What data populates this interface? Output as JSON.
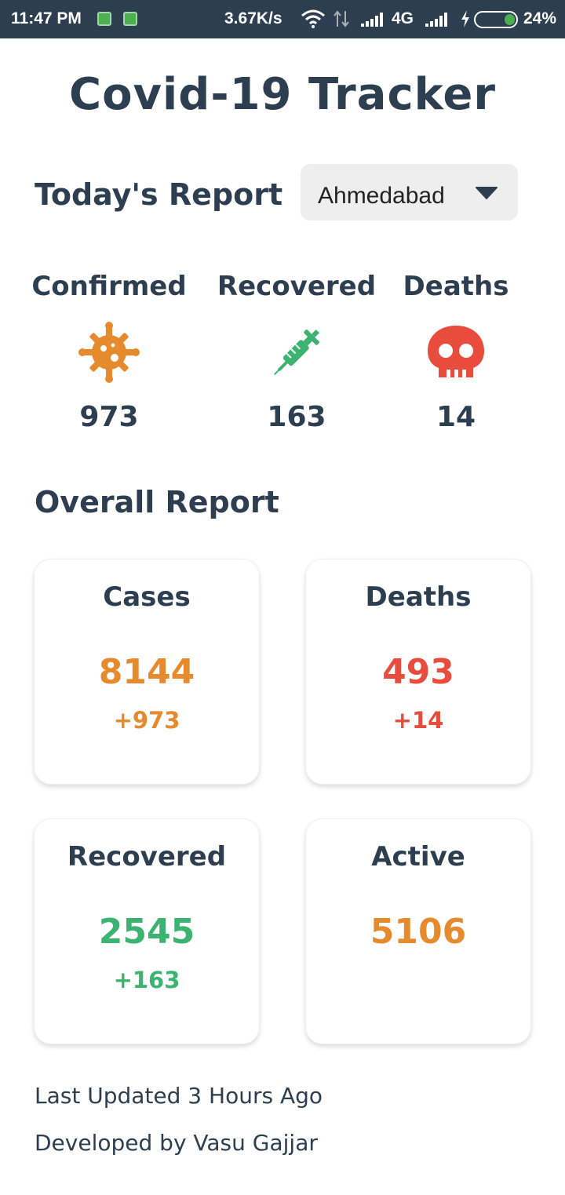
{
  "status_bar": {
    "time": "11:47 PM",
    "speed": "3.67K/s",
    "network": "4G",
    "battery": "24%"
  },
  "app": {
    "title": "Covid-19 Tracker"
  },
  "today": {
    "title": "Today's Report",
    "city_selected": "Ahmedabad",
    "stats": [
      {
        "label": "Confirmed",
        "value": "973",
        "icon": "virus-icon",
        "color": "#e68a2e"
      },
      {
        "label": "Recovered",
        "value": "163",
        "icon": "syringe-icon",
        "color": "#3cb371"
      },
      {
        "label": "Deaths",
        "value": "14",
        "icon": "skull-icon",
        "color": "#e74c3c"
      }
    ]
  },
  "overall": {
    "title": "Overall Report",
    "cards": [
      {
        "title": "Cases",
        "value": "8144",
        "delta": "+973",
        "color": "#e68a2e"
      },
      {
        "title": "Deaths",
        "value": "493",
        "delta": "+14",
        "color": "#e74c3c"
      },
      {
        "title": "Recovered",
        "value": "2545",
        "delta": "+163",
        "color": "#3cb371"
      },
      {
        "title": "Active",
        "value": "5106",
        "delta": "",
        "color": "#e68a2e"
      }
    ]
  },
  "footer": {
    "last_updated": "Last Updated 3 Hours Ago",
    "developer": "Developed by Vasu Gajjar"
  },
  "colors": {
    "primary": "#2c3e50",
    "orange": "#e68a2e",
    "red": "#e74c3c",
    "green": "#3cb371"
  }
}
